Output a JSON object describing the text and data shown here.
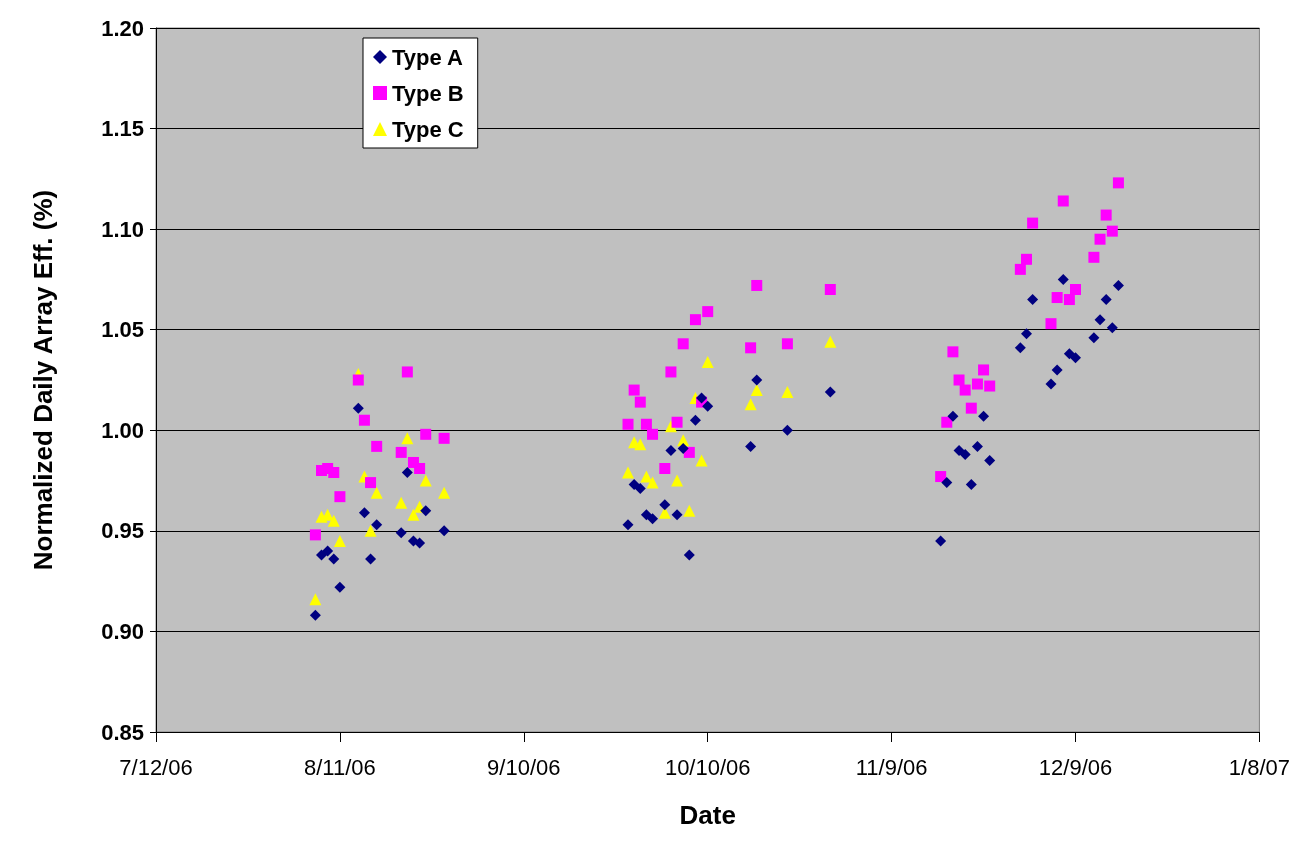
{
  "chart_data": {
    "type": "scatter",
    "xlabel": "Date",
    "ylabel": "Normalized Daily Array Eff. (%)",
    "xlim": [
      "2006-07-12",
      "2007-01-08"
    ],
    "xticks": [
      {
        "value": "2006-07-12",
        "label": "7/12/06"
      },
      {
        "value": "2006-08-11",
        "label": "8/11/06"
      },
      {
        "value": "2006-09-10",
        "label": "9/10/06"
      },
      {
        "value": "2006-10-10",
        "label": "10/10/06"
      },
      {
        "value": "2006-11-09",
        "label": "11/9/06"
      },
      {
        "value": "2006-12-09",
        "label": "12/9/06"
      },
      {
        "value": "2007-01-08",
        "label": "1/8/07"
      }
    ],
    "ylim": [
      0.85,
      1.2
    ],
    "yticks": [
      {
        "value": 0.85,
        "label": "0.85"
      },
      {
        "value": 0.9,
        "label": "0.90"
      },
      {
        "value": 0.95,
        "label": "0.95"
      },
      {
        "value": 1.0,
        "label": "1.00"
      },
      {
        "value": 1.05,
        "label": "1.05"
      },
      {
        "value": 1.1,
        "label": "1.10"
      },
      {
        "value": 1.15,
        "label": "1.15"
      },
      {
        "value": 1.2,
        "label": "1.20"
      }
    ],
    "grid": "y",
    "legend": "top left",
    "series": [
      {
        "name": "Type A",
        "color": "#000080",
        "marker": "diamond",
        "x": [
          "2006-08-07",
          "2006-08-08",
          "2006-08-09",
          "2006-08-10",
          "2006-08-11",
          "2006-08-14",
          "2006-08-15",
          "2006-08-16",
          "2006-08-17",
          "2006-08-21",
          "2006-08-22",
          "2006-08-23",
          "2006-08-24",
          "2006-08-25",
          "2006-08-28",
          "2006-09-27",
          "2006-09-28",
          "2006-09-29",
          "2006-09-30",
          "2006-10-01",
          "2006-10-03",
          "2006-10-04",
          "2006-10-05",
          "2006-10-06",
          "2006-10-07",
          "2006-10-08",
          "2006-10-09",
          "2006-10-10",
          "2006-10-17",
          "2006-10-18",
          "2006-10-23",
          "2006-10-30",
          "2006-11-17",
          "2006-11-18",
          "2006-11-19",
          "2006-11-20",
          "2006-11-21",
          "2006-11-22",
          "2006-11-23",
          "2006-11-24",
          "2006-11-25",
          "2006-11-30",
          "2006-12-01",
          "2006-12-02",
          "2006-12-05",
          "2006-12-06",
          "2006-12-07",
          "2006-12-08",
          "2006-12-09",
          "2006-12-12",
          "2006-12-13",
          "2006-12-14",
          "2006-12-15",
          "2006-12-16"
        ],
        "values": [
          0.908,
          0.938,
          0.94,
          0.936,
          0.922,
          1.011,
          0.959,
          0.936,
          0.953,
          0.949,
          0.979,
          0.945,
          0.944,
          0.96,
          0.95,
          0.953,
          0.973,
          0.971,
          0.958,
          0.956,
          0.963,
          0.99,
          0.958,
          0.991,
          0.938,
          1.005,
          1.016,
          1.012,
          0.992,
          1.025,
          1.0,
          1.019,
          0.945,
          0.974,
          1.007,
          0.99,
          0.988,
          0.973,
          0.992,
          1.007,
          0.985,
          1.041,
          1.048,
          1.065,
          1.023,
          1.03,
          1.075,
          1.038,
          1.036,
          1.046,
          1.055,
          1.065,
          1.051,
          1.072
        ]
      },
      {
        "name": "Type B",
        "color": "#ff00ff",
        "marker": "square",
        "x": [
          "2006-08-07",
          "2006-08-08",
          "2006-08-09",
          "2006-08-10",
          "2006-08-11",
          "2006-08-14",
          "2006-08-15",
          "2006-08-16",
          "2006-08-17",
          "2006-08-21",
          "2006-08-22",
          "2006-08-23",
          "2006-08-24",
          "2006-08-25",
          "2006-08-28",
          "2006-09-27",
          "2006-09-28",
          "2006-09-29",
          "2006-09-30",
          "2006-10-01",
          "2006-10-03",
          "2006-10-04",
          "2006-10-05",
          "2006-10-06",
          "2006-10-07",
          "2006-10-08",
          "2006-10-09",
          "2006-10-10",
          "2006-10-17",
          "2006-10-18",
          "2006-10-23",
          "2006-10-30",
          "2006-11-17",
          "2006-11-18",
          "2006-11-19",
          "2006-11-20",
          "2006-11-21",
          "2006-11-22",
          "2006-11-23",
          "2006-11-24",
          "2006-11-25",
          "2006-11-30",
          "2006-12-01",
          "2006-12-02",
          "2006-12-05",
          "2006-12-06",
          "2006-12-07",
          "2006-12-08",
          "2006-12-09",
          "2006-12-12",
          "2006-12-13",
          "2006-12-14",
          "2006-12-15",
          "2006-12-16"
        ],
        "values": [
          0.948,
          0.98,
          0.981,
          0.979,
          0.967,
          1.025,
          1.005,
          0.974,
          0.992,
          0.989,
          1.029,
          0.984,
          0.981,
          0.998,
          0.996,
          1.003,
          1.02,
          1.014,
          1.003,
          0.998,
          0.981,
          1.029,
          1.004,
          1.043,
          0.989,
          1.055,
          1.014,
          1.059,
          1.041,
          1.072,
          1.043,
          1.07,
          0.977,
          1.004,
          1.039,
          1.025,
          1.02,
          1.011,
          1.023,
          1.03,
          1.022,
          1.08,
          1.085,
          1.103,
          1.053,
          1.066,
          1.114,
          1.065,
          1.07,
          1.086,
          1.095,
          1.107,
          1.099,
          1.123
        ]
      },
      {
        "name": "Type C",
        "color": "#ffff00",
        "marker": "triangle",
        "x": [
          "2006-08-07",
          "2006-08-08",
          "2006-08-09",
          "2006-08-10",
          "2006-08-11",
          "2006-08-14",
          "2006-08-15",
          "2006-08-16",
          "2006-08-17",
          "2006-08-21",
          "2006-08-22",
          "2006-08-23",
          "2006-08-24",
          "2006-08-25",
          "2006-08-28",
          "2006-09-27",
          "2006-09-28",
          "2006-09-29",
          "2006-09-30",
          "2006-10-01",
          "2006-10-03",
          "2006-10-04",
          "2006-10-05",
          "2006-10-06",
          "2006-10-07",
          "2006-10-08",
          "2006-10-09",
          "2006-10-10",
          "2006-10-17",
          "2006-10-18",
          "2006-10-23",
          "2006-10-30"
        ],
        "values": [
          0.916,
          0.957,
          0.958,
          0.955,
          0.945,
          1.028,
          0.977,
          0.95,
          0.969,
          0.964,
          0.996,
          0.958,
          0.962,
          0.975,
          0.969,
          0.979,
          0.994,
          0.993,
          0.977,
          0.974,
          0.959,
          1.002,
          0.975,
          0.995,
          0.96,
          1.016,
          0.985,
          1.034,
          1.013,
          1.02,
          1.019,
          1.044
        ]
      }
    ]
  }
}
